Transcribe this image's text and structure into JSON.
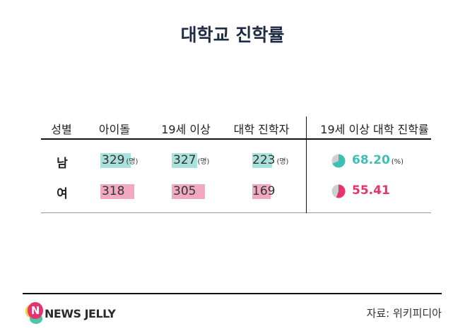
{
  "title": "대학교 진학률",
  "colors": {
    "male": "#3cbfb4",
    "male_bar": "#a9e1dc",
    "female": "#e8336e",
    "female_bar": "#f0a9c0",
    "pie_rest": "#cfcfcf"
  },
  "chart_data": {
    "type": "table",
    "title": "대학교 진학률",
    "columns": [
      "성별",
      "아이돌",
      "19세 이상",
      "대학 진학자",
      "19세 이상 대학 진학률"
    ],
    "rows": [
      {
        "label": "남",
        "idol": "329",
        "over19": "327",
        "college": "223",
        "rate": "68.20",
        "rate_value": 68.2,
        "unit": "(명)",
        "rate_unit": "(%)"
      },
      {
        "label": "여",
        "idol": "318",
        "over19": "305",
        "college": "169",
        "rate": "55.41",
        "rate_value": 55.41
      }
    ]
  },
  "footer": {
    "brand": "NEWS JELLY",
    "logo_letter": "N",
    "source": "자료: 위키피디아"
  }
}
